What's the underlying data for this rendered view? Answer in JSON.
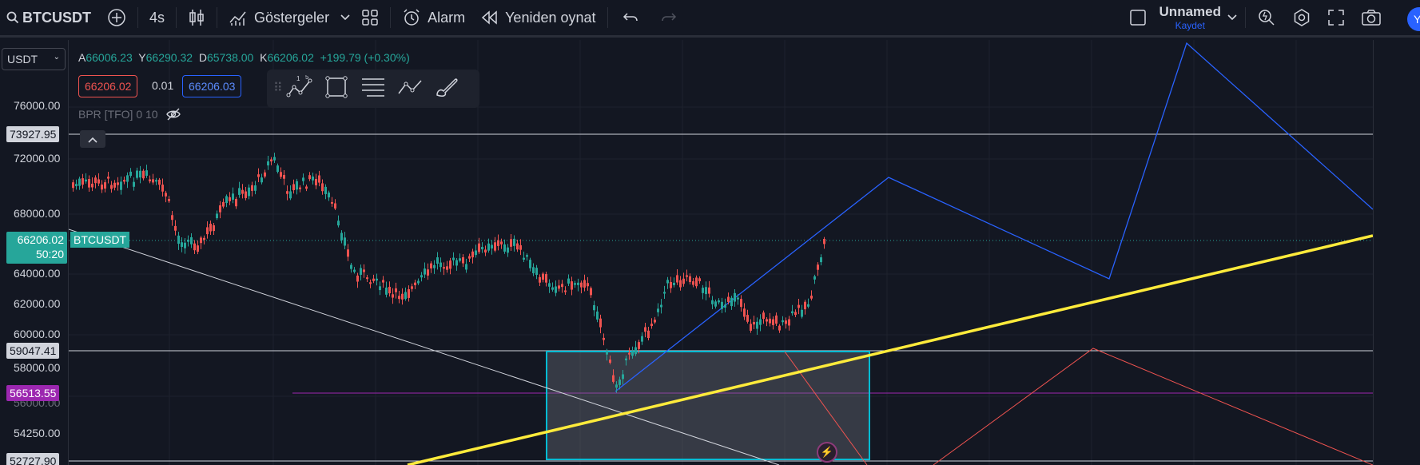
{
  "toolbar": {
    "symbol": "BTCUSDT",
    "interval": "4s",
    "indicators_label": "Göstergeler",
    "alert_label": "Alarm",
    "replay_label": "Yeniden oynat",
    "layout_name": "Unnamed",
    "save_label": "Kaydet",
    "avatar_initial": "Y"
  },
  "scale": {
    "currency": "USDT",
    "ticks": [
      "76000.00",
      "72000.00",
      "68000.00",
      "64000.00",
      "62000.00",
      "60000.00",
      "58000.00",
      "56000.00",
      "54250.00"
    ],
    "tags": {
      "line_top": "73927.95",
      "last_price": "66206.02",
      "countdown": "50:20",
      "line_mid": "59047.41",
      "line_purple": "56513.55",
      "line_bottom": "52727.90"
    }
  },
  "legend": {
    "a_label": "A",
    "a_value": "66006.23",
    "y_label": "Y",
    "y_value": "66290.32",
    "d_label": "D",
    "d_value": "65738.00",
    "k_label": "K",
    "k_value": "66206.02",
    "change": "+199.79 (+0.30%)",
    "sell_price": "66206.02",
    "spread": "0.01",
    "buy_price": "66206.03",
    "indicator": "BPR [TFO] 0 10",
    "symbol_tag": "BTCUSDT"
  },
  "drawing_tools": [
    "polyline-icon",
    "rectangle-icon",
    "text-lines-icon",
    "trend-icon",
    "brush-icon"
  ],
  "colors": {
    "background": "#131722",
    "up": "#26a69a",
    "down": "#ef5350",
    "accent": "#2962ff",
    "trendline": "#ffeb3b",
    "zone": "#00bcd4",
    "purple": "#9c27b0"
  }
}
